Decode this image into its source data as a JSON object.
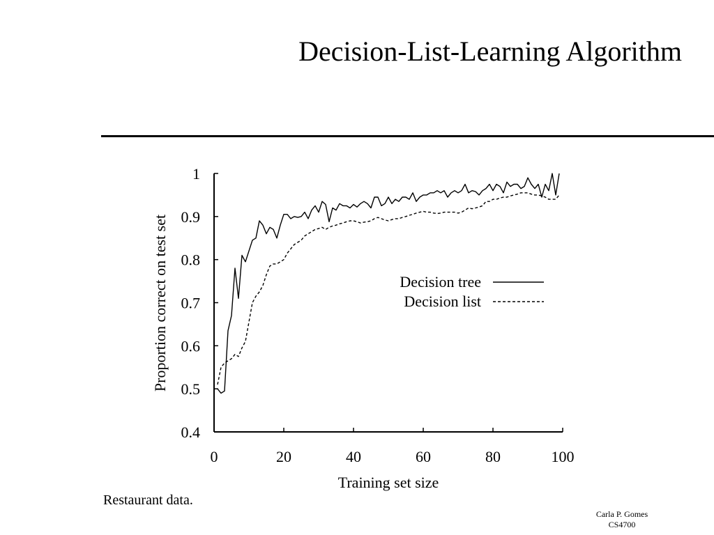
{
  "slide": {
    "title": "Decision-List-Learning Algorithm",
    "caption": "Restaurant data.",
    "footer_line1": "Carla P. Gomes",
    "footer_line2": "CS4700"
  },
  "chart_data": {
    "type": "line",
    "title": "",
    "xlabel": "Training set size",
    "ylabel": "Proportion correct on test set",
    "xlim": [
      0,
      100
    ],
    "ylim": [
      0.4,
      1.0
    ],
    "xticks": [
      0,
      20,
      40,
      60,
      80,
      100
    ],
    "xtick_labels": [
      "0",
      "20",
      "40",
      "60",
      "80",
      "100"
    ],
    "yticks": [
      0.4,
      0.5,
      0.6,
      0.7,
      0.8,
      0.9,
      1.0
    ],
    "ytick_labels": [
      "0.4",
      "0.5",
      "0.6",
      "0.7",
      "0.8",
      "0.9",
      "1"
    ],
    "grid": false,
    "legend_position": "center-right",
    "series": [
      {
        "name": "Decision tree",
        "style": "solid",
        "x": [
          1,
          2,
          3,
          4,
          5,
          6,
          7,
          8,
          9,
          10,
          11,
          12,
          13,
          14,
          15,
          16,
          17,
          18,
          19,
          20,
          21,
          22,
          23,
          24,
          25,
          26,
          27,
          28,
          29,
          30,
          31,
          32,
          33,
          34,
          35,
          36,
          37,
          38,
          39,
          40,
          41,
          42,
          43,
          44,
          45,
          46,
          47,
          48,
          49,
          50,
          51,
          52,
          53,
          54,
          55,
          56,
          57,
          58,
          59,
          60,
          61,
          62,
          63,
          64,
          65,
          66,
          67,
          68,
          69,
          70,
          71,
          72,
          73,
          74,
          75,
          76,
          77,
          78,
          79,
          80,
          81,
          82,
          83,
          84,
          85,
          86,
          87,
          88,
          89,
          90,
          91,
          92,
          93,
          94,
          95,
          96,
          97,
          98,
          99
        ],
        "y": [
          0.5,
          0.49,
          0.495,
          0.635,
          0.67,
          0.78,
          0.71,
          0.81,
          0.795,
          0.82,
          0.845,
          0.85,
          0.89,
          0.88,
          0.86,
          0.875,
          0.87,
          0.85,
          0.88,
          0.905,
          0.905,
          0.895,
          0.9,
          0.898,
          0.9,
          0.91,
          0.895,
          0.915,
          0.925,
          0.91,
          0.935,
          0.928,
          0.888,
          0.92,
          0.915,
          0.93,
          0.925,
          0.925,
          0.92,
          0.928,
          0.922,
          0.93,
          0.935,
          0.93,
          0.92,
          0.945,
          0.945,
          0.925,
          0.93,
          0.945,
          0.93,
          0.94,
          0.935,
          0.945,
          0.945,
          0.94,
          0.955,
          0.935,
          0.945,
          0.95,
          0.95,
          0.955,
          0.955,
          0.96,
          0.955,
          0.96,
          0.945,
          0.955,
          0.96,
          0.955,
          0.96,
          0.975,
          0.955,
          0.96,
          0.958,
          0.95,
          0.96,
          0.965,
          0.975,
          0.96,
          0.975,
          0.97,
          0.955,
          0.98,
          0.97,
          0.975,
          0.975,
          0.965,
          0.97,
          0.99,
          0.975,
          0.965,
          0.975,
          0.945,
          0.975,
          0.96,
          1.0,
          0.95,
          1.0
        ]
      },
      {
        "name": "Decision list",
        "style": "dashed",
        "x": [
          1,
          2,
          3,
          4,
          5,
          6,
          7,
          8,
          9,
          10,
          11,
          12,
          13,
          14,
          15,
          16,
          17,
          18,
          19,
          20,
          21,
          22,
          23,
          24,
          25,
          26,
          27,
          28,
          29,
          30,
          31,
          32,
          33,
          34,
          35,
          36,
          37,
          38,
          39,
          40,
          41,
          42,
          43,
          44,
          45,
          46,
          47,
          48,
          49,
          50,
          51,
          52,
          53,
          54,
          55,
          56,
          57,
          58,
          59,
          60,
          61,
          62,
          63,
          64,
          65,
          66,
          67,
          68,
          69,
          70,
          71,
          72,
          73,
          74,
          75,
          76,
          77,
          78,
          79,
          80,
          81,
          82,
          83,
          84,
          85,
          86,
          87,
          88,
          89,
          90,
          91,
          92,
          93,
          94,
          95,
          96,
          97,
          98,
          99
        ],
        "y": [
          0.51,
          0.55,
          0.56,
          0.565,
          0.57,
          0.58,
          0.575,
          0.595,
          0.61,
          0.655,
          0.7,
          0.715,
          0.725,
          0.74,
          0.765,
          0.785,
          0.79,
          0.79,
          0.795,
          0.8,
          0.815,
          0.825,
          0.835,
          0.84,
          0.845,
          0.855,
          0.86,
          0.865,
          0.87,
          0.872,
          0.875,
          0.87,
          0.875,
          0.878,
          0.88,
          0.883,
          0.885,
          0.888,
          0.89,
          0.89,
          0.888,
          0.885,
          0.887,
          0.888,
          0.89,
          0.895,
          0.898,
          0.895,
          0.892,
          0.89,
          0.893,
          0.895,
          0.895,
          0.898,
          0.9,
          0.903,
          0.905,
          0.908,
          0.91,
          0.912,
          0.91,
          0.91,
          0.908,
          0.907,
          0.908,
          0.91,
          0.91,
          0.91,
          0.91,
          0.908,
          0.91,
          0.915,
          0.92,
          0.918,
          0.92,
          0.922,
          0.925,
          0.935,
          0.935,
          0.94,
          0.94,
          0.943,
          0.945,
          0.945,
          0.948,
          0.95,
          0.952,
          0.955,
          0.955,
          0.955,
          0.952,
          0.95,
          0.95,
          0.948,
          0.945,
          0.94,
          0.94,
          0.94,
          0.95
        ]
      }
    ]
  }
}
